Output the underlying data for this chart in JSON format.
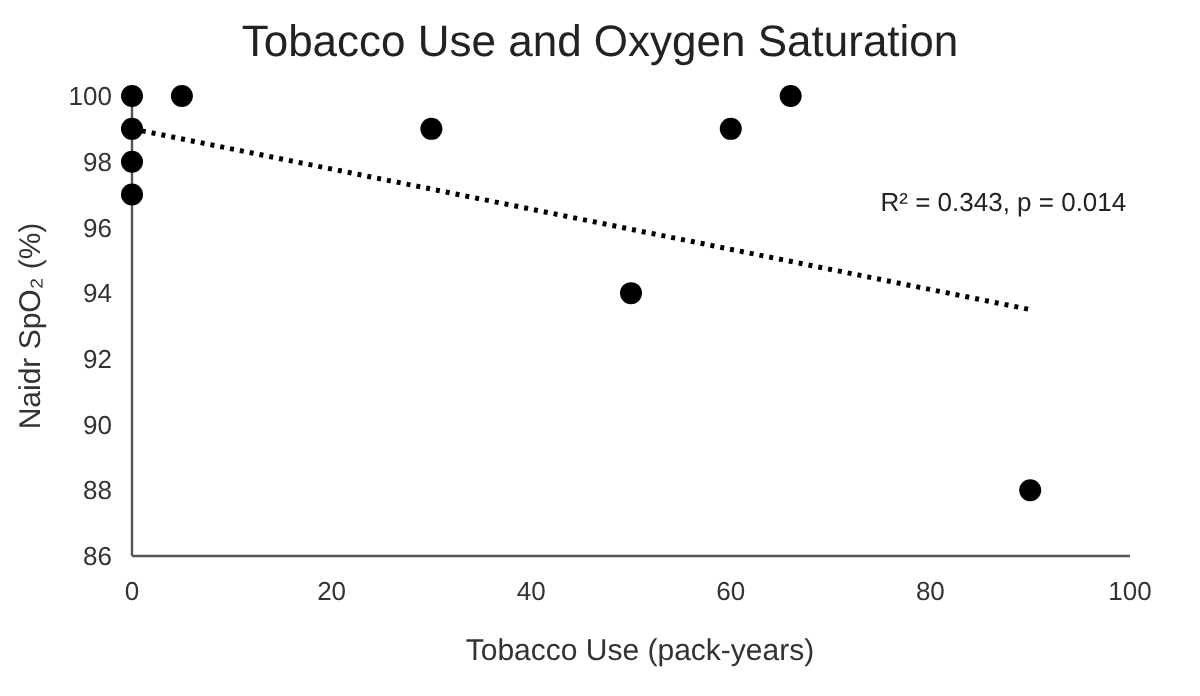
{
  "chart_data": {
    "type": "scatter",
    "title": "Tobacco Use and Oxygen Saturation",
    "xlabel": "Tobacco Use (pack-years)",
    "ylabel": "Naidr SpO₂ (%)",
    "annotations": [
      "R² = 0.343, p = 0.014"
    ],
    "xlim": [
      0,
      100
    ],
    "xticks": [
      0,
      20,
      40,
      60,
      80,
      100
    ],
    "ylim": [
      86,
      100
    ],
    "yticks": [
      86,
      88,
      90,
      92,
      94,
      96,
      98,
      100
    ],
    "grid": false,
    "series": [
      {
        "color": "#000000",
        "marker": "circle",
        "x": [
          0,
          0,
          0,
          0,
          5,
          30,
          50,
          60,
          66,
          90
        ],
        "values": [
          100,
          99,
          98,
          97,
          100,
          99,
          94,
          99,
          100,
          88
        ]
      },
      {
        "type": "line",
        "color": "#000000",
        "line_style": "dotted",
        "marker": "none",
        "x": [
          0,
          90
        ],
        "values": [
          99,
          93.5
        ]
      }
    ]
  }
}
